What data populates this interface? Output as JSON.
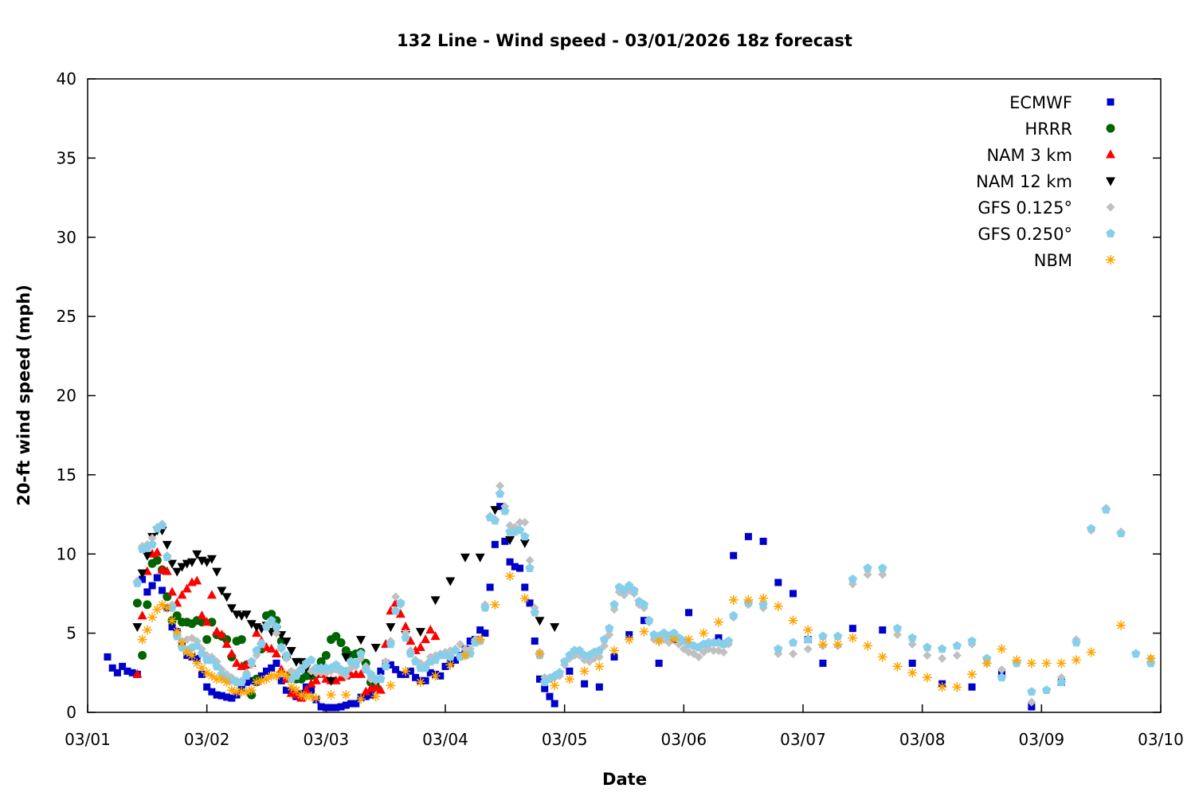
{
  "chart_data": {
    "type": "scatter",
    "title": "132 Line - Wind speed - 03/01/2026 18z forecast",
    "xlabel": "Date",
    "ylabel": "20-ft wind speed (mph)",
    "xlim": [
      "03/01 00z",
      "03/10 00z"
    ],
    "ylim": [
      0,
      40
    ],
    "x_ticks": [
      "03/01",
      "03/02",
      "03/03",
      "03/04",
      "03/05",
      "03/06",
      "03/07",
      "03/08",
      "03/09",
      "03/10"
    ],
    "y_ticks": [
      "0",
      "5",
      "10",
      "15",
      "20",
      "25",
      "30",
      "35",
      "40"
    ],
    "grid": false,
    "legend_position": "top-right",
    "series": [
      {
        "name": "ECMWF",
        "marker": "square",
        "color": "#0000cc",
        "segments": [
          {
            "start": "03/01 04z",
            "step_hours": 1,
            "values": [
              3.5,
              2.8,
              2.5,
              2.9,
              2.6,
              2.5,
              2.4,
              8.4,
              7.6,
              8.0,
              8.5,
              7.7,
              6.6,
              5.4,
              5.1,
              4.3,
              3.6,
              3.5,
              3.4,
              2.4,
              1.6,
              1.3,
              1.1,
              1.05,
              0.96,
              0.9,
              1.1,
              1.5,
              1.9,
              2.0,
              1.9,
              2.3,
              2.6,
              2.8,
              3.1,
              2.0,
              1.4,
              1.3,
              1.0,
              1.2,
              1.6,
              1.4,
              0.8,
              0.35,
              0.3,
              0.3,
              0.3,
              0.35,
              0.45,
              0.55,
              0.55,
              0.95,
              1.0,
              1.1,
              2.0,
              2.6,
              3.1,
              3.0,
              2.7,
              2.4,
              2.4,
              2.6,
              2.2,
              2.0,
              2.0,
              2.5,
              2.4,
              2.3,
              2.9,
              3.1,
              3.3,
              3.6,
              4.0,
              4.5,
              4.6,
              5.2,
              5.0,
              7.9,
              10.6,
              13.0,
              10.8,
              9.5,
              9.2,
              9.1,
              7.9,
              6.9,
              4.5,
              2.1,
              1.5,
              1.0,
              0.55
            ]
          },
          {
            "start": "03/05 01z",
            "step_hours": 3,
            "values": [
              2.6,
              1.8,
              1.6,
              3.5,
              4.9,
              5.8,
              3.1,
              4.6,
              6.3,
              null,
              4.7,
              9.9,
              11.1,
              10.8,
              8.2,
              7.5,
              4.6,
              3.1
            ]
          },
          {
            "start": "03/07 10z",
            "step_hours": 6,
            "values": [
              5.3,
              5.2,
              3.1,
              1.8,
              1.6,
              2.4,
              0.35,
              1.9
            ]
          }
        ]
      },
      {
        "name": "HRRR",
        "marker": "circle",
        "color": "#006400",
        "segments": [
          {
            "start": "03/01 10z",
            "step_hours": 1,
            "values": [
              6.9,
              3.6,
              6.8,
              9.4,
              9.6,
              9.0,
              7.3,
              5.8,
              6.1,
              5.7,
              5.7,
              5.6,
              5.8,
              5.7,
              4.6,
              5.7,
              4.9,
              4.8,
              4.6,
              3.5,
              4.5,
              4.6,
              3.0,
              1.1,
              2.1,
              4.0,
              6.1,
              6.2,
              5.8,
              4.5,
              3.5,
              2.5,
              2.1,
              2.1,
              2.3,
              2.3,
              2.4,
              3.2,
              3.6,
              4.6,
              4.8,
              4.4,
              3.9,
              3.6,
              3.7,
              3.8,
              3.1,
              1.9,
              1.6
            ]
          }
        ]
      },
      {
        "name": "NAM 3 km",
        "marker": "triangle-up",
        "color": "#ff0000",
        "segments": [
          {
            "start": "03/01 10z",
            "step_hours": 1,
            "values": [
              2.4,
              6.1,
              8.9,
              10.0,
              10.1,
              9.0,
              8.9,
              7.6,
              6.9,
              7.4,
              7.8,
              8.2,
              8.3,
              6.1,
              5.7,
              7.4,
              5.1,
              4.9,
              4.3,
              3.7,
              3.1,
              2.9,
              3.0,
              3.1,
              5.0,
              4.5,
              4.1,
              4.0,
              3.7,
              2.7,
              2.1,
              1.2,
              1.1,
              0.9,
              1.4,
              1.8,
              2.0,
              2.4,
              2.1,
              2.0,
              2.0,
              2.2,
              2.3,
              2.4,
              2.4,
              2.4,
              1.3,
              1.5,
              1.6,
              1.4,
              4.3,
              6.4,
              6.9,
              6.2,
              5.4,
              4.5,
              3.9,
              4.1,
              4.6,
              5.2,
              4.8
            ]
          }
        ]
      },
      {
        "name": "NAM 12 km",
        "marker": "triangle-down",
        "color": "#000000",
        "segments": [
          {
            "start": "03/01 10z",
            "step_hours": 1,
            "values": [
              5.4,
              8.8,
              9.9,
              11.1,
              11.5,
              11.5,
              10.6,
              9.4,
              8.9,
              9.2,
              9.4,
              9.5,
              10.0,
              9.6,
              9.5,
              9.7,
              8.9,
              7.7,
              7.3,
              6.6,
              6.2,
              6.1,
              6.2,
              5.6,
              5.4,
              5.3,
              5.5,
              5.1,
              5.2,
              4.9,
              4.5,
              3.9,
              3.2,
              3.2,
              2.8,
              2.5
            ]
          },
          {
            "start": "03/03 01z",
            "step_hours": 3,
            "values": [
              2.0,
              3.5,
              4.6,
              4.1,
              5.4,
              4.9,
              5.1,
              7.1,
              8.3,
              9.8,
              9.8,
              12.8,
              10.9,
              10.7,
              5.8,
              5.4
            ]
          }
        ]
      },
      {
        "name": "GFS 0.125°",
        "marker": "diamond",
        "color": "#c0c0c0",
        "segments": [
          {
            "start": "03/01 10z",
            "step_hours": 1,
            "values": [
              8.3,
              10.5,
              10.6,
              11.0,
              11.7,
              11.9,
              9.9,
              6.8,
              5.0,
              4.5,
              4.6,
              4.7,
              4.5,
              4.0,
              3.6,
              3.5,
              3.2,
              2.7,
              2.4,
              2.2,
              2.0,
              2.0,
              2.5,
              3.0,
              3.6,
              4.4,
              5.5,
              5.7,
              5.0,
              4.0,
              3.4,
              2.6,
              2.5,
              2.8,
              3.0,
              2.6,
              2.5,
              2.5,
              2.5,
              2.6,
              2.7,
              2.5,
              2.3,
              2.8,
              2.9,
              3.4,
              2.9,
              2.1,
              2.0,
              2.2,
              3.2,
              4.5,
              7.3,
              6.8,
              5.0,
              3.9,
              3.3,
              3.1,
              3.0,
              3.5,
              3.6,
              3.7,
              3.8,
              3.9,
              4.0,
              4.3,
              4.0,
              4.0,
              4.6,
              4.6,
              6.8,
              12.4,
              12.2,
              14.3,
              13.0,
              11.8,
              11.7,
              12.0,
              12.0,
              9.6,
              6.6,
              3.8,
              2.2,
              2.2,
              2.2,
              2.3,
              3.0,
              3.4,
              3.6,
              3.6,
              3.3,
              3.2,
              3.4,
              3.5,
              4.2,
              4.9,
              6.5,
              7.6,
              7.4,
              7.7,
              7.5,
              6.8,
              6.6,
              5.7,
              4.6,
              4.5,
              4.6,
              4.4,
              4.7,
              4.3,
              4.0,
              3.8,
              3.7,
              3.5,
              3.8,
              4.0,
              3.9,
              3.9,
              3.8,
              4.3
            ]
          },
          {
            "start": "03/06 10z",
            "step_hours": 3,
            "values": [
              6.0,
              6.8,
              6.6,
              3.7,
              3.7,
              4.0,
              4.2,
              4.2,
              8.1,
              8.7,
              8.7,
              4.9,
              4.3,
              3.6,
              3.4,
              3.6,
              4.3,
              3.1,
              2.7,
              3.1,
              0.65,
              null,
              2.2,
              4.6,
              11.5,
              12.9,
              11.4,
              3.7,
              3.4
            ]
          }
        ]
      },
      {
        "name": "GFS 0.250°",
        "marker": "pentagon",
        "color": "#87ceeb",
        "segments": [
          {
            "start": "03/01 10z",
            "step_hours": 1,
            "values": [
              8.15,
              10.3,
              10.4,
              10.6,
              11.6,
              11.8,
              9.8,
              6.6,
              4.8,
              4.1,
              3.9,
              4.1,
              4.2,
              3.7,
              3.3,
              3.3,
              2.9,
              2.4,
              2.1,
              2.0,
              1.9,
              1.9,
              2.3,
              3.2,
              3.9,
              4.3,
              5.4,
              5.8,
              5.4,
              4.1,
              3.6,
              2.1,
              2.3,
              2.7,
              3.1,
              3.3,
              2.8,
              2.8,
              2.8,
              2.8,
              3.0,
              2.7,
              2.6,
              3.2,
              3.1,
              3.7,
              2.7,
              2.4,
              2.1,
              2.1,
              2.9,
              4.3,
              6.4,
              6.9,
              4.7,
              3.7,
              3.2,
              2.8,
              2.8,
              3.2,
              3.3,
              3.6,
              3.6,
              3.5,
              3.9,
              3.5,
              3.6,
              3.7,
              4.4,
              4.5,
              6.6,
              12.3,
              12.1,
              13.8,
              12.7,
              11.4,
              11.4,
              11.5,
              11.1,
              9.1,
              6.3,
              3.6,
              1.9,
              2.1,
              2.3,
              2.5,
              3.2,
              3.6,
              3.9,
              3.9,
              3.6,
              3.6,
              3.8,
              3.9,
              4.6,
              5.3,
              6.8,
              7.9,
              7.7,
              8.0,
              7.7,
              7.0,
              6.8,
              5.8,
              4.9,
              4.8,
              5.0,
              4.8,
              5.0,
              4.7,
              4.5,
              4.3,
              4.2,
              4.1,
              4.3,
              4.4,
              4.4,
              4.4,
              4.3,
              4.5
            ]
          },
          {
            "start": "03/06 10z",
            "step_hours": 3,
            "values": [
              6.1,
              6.9,
              6.8,
              4.0,
              4.4,
              4.6,
              4.8,
              4.8,
              8.4,
              9.1,
              9.1,
              5.3,
              4.7,
              4.1,
              4.0,
              4.2,
              4.5,
              3.4,
              2.2,
              3.1,
              1.3,
              1.4,
              1.9,
              4.4,
              11.6,
              12.8,
              11.3,
              3.7,
              3.1
            ]
          }
        ]
      },
      {
        "name": "NBM",
        "marker": "asterisk",
        "color": "#ffa500",
        "segments": [
          {
            "start": "03/01 11z",
            "step_hours": 1,
            "values": [
              4.6,
              5.2,
              6.0,
              6.5,
              6.8,
              6.6,
              5.8,
              5.1,
              4.4,
              3.8,
              3.6,
              3.1,
              2.8,
              2.5,
              2.3,
              2.1,
              2.1,
              1.9,
              1.4,
              1.3,
              1.3,
              1.3,
              1.4,
              1.9,
              2.0,
              2.1,
              2.3,
              2.3,
              2.5,
              2.3,
              1.6,
              1.4,
              1.1,
              1.0,
              1.0,
              0.9
            ]
          },
          {
            "start": "03/03 01z",
            "step_hours": 3,
            "values": [
              1.1,
              1.1,
              0.85,
              1.0,
              1.7,
              2.6,
              1.9,
              2.3,
              3.0,
              3.6,
              4.6,
              6.8,
              8.6,
              7.2,
              3.7,
              1.7,
              2.1,
              2.6,
              2.9,
              3.9,
              4.6,
              5.1,
              4.5,
              4.6,
              4.6,
              5.0,
              5.7,
              7.1,
              7.1,
              7.2,
              6.7,
              5.8,
              5.2,
              4.3,
              4.3,
              4.7,
              4.2,
              3.5,
              2.9,
              2.5,
              2.2,
              1.6,
              1.6,
              2.4,
              3.1,
              4.0,
              3.3,
              3.1,
              3.1,
              3.1,
              3.3,
              3.8,
              null,
              5.5,
              null,
              3.4
            ]
          }
        ]
      }
    ]
  }
}
